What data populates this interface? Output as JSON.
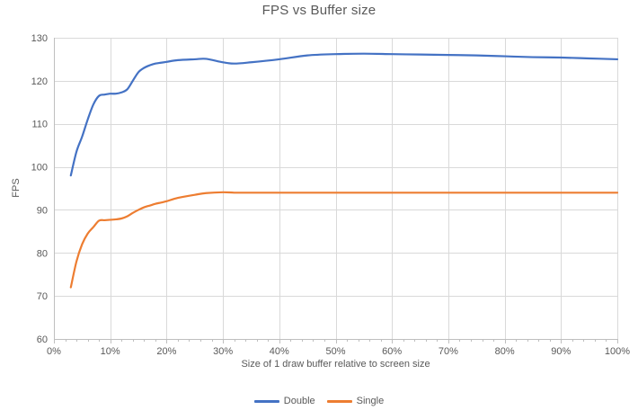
{
  "chart_data": {
    "type": "line",
    "title": "FPS vs Buffer size",
    "xlabel": "Size of 1 draw buffer relative to screen size",
    "ylabel": "FPS",
    "xlim": [
      0,
      100
    ],
    "ylim": [
      60,
      130
    ],
    "grid": true,
    "legend_position": "bottom",
    "x_major_ticks": [
      0,
      10,
      20,
      30,
      40,
      50,
      60,
      70,
      80,
      90,
      100
    ],
    "x_tick_labels": [
      "0%",
      "10%",
      "20%",
      "30%",
      "40%",
      "50%",
      "60%",
      "70%",
      "80%",
      "90%",
      "100%"
    ],
    "x_minor_tick_step": 2,
    "y_ticks": [
      60,
      70,
      80,
      90,
      100,
      110,
      120,
      130
    ],
    "colors": {
      "grid": "#d9d9d9",
      "axis": "#bfbfbf",
      "text": "#595959",
      "title": "#595959"
    },
    "x": [
      3,
      4,
      5,
      6,
      7,
      8,
      9,
      10,
      11,
      12,
      13,
      14,
      15,
      16,
      17,
      18,
      19,
      20,
      22,
      25,
      27,
      30,
      32,
      35,
      40,
      45,
      50,
      55,
      60,
      65,
      70,
      75,
      80,
      85,
      90,
      95,
      100
    ],
    "series": [
      {
        "name": "Double",
        "color": "#4472c4",
        "values": [
          98,
          103.5,
          107,
          111,
          114.5,
          116.5,
          116.8,
          117,
          117,
          117.3,
          118,
          120,
          122,
          123,
          123.6,
          124,
          124.2,
          124.4,
          124.8,
          125,
          125.1,
          124.3,
          124,
          124.3,
          125,
          125.9,
          126.2,
          126.3,
          126.2,
          126.1,
          126,
          125.9,
          125.7,
          125.5,
          125.4,
          125.2,
          125
        ]
      },
      {
        "name": "Single",
        "color": "#ed7d31",
        "values": [
          72,
          78,
          82,
          84.5,
          86,
          87.5,
          87.6,
          87.7,
          87.8,
          88,
          88.5,
          89.3,
          90,
          90.6,
          91,
          91.4,
          91.7,
          92,
          92.8,
          93.5,
          93.9,
          94.1,
          94,
          94,
          94,
          94,
          94,
          94,
          94,
          94,
          94,
          94,
          94,
          94,
          94,
          94,
          94
        ]
      }
    ]
  }
}
